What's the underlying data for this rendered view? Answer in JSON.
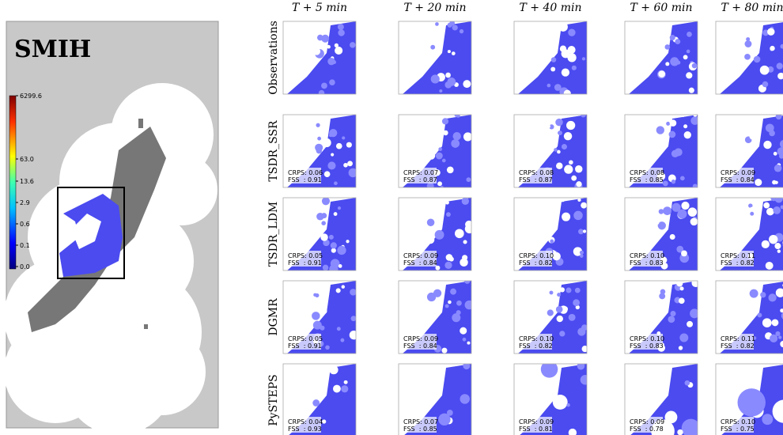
{
  "left_panel": {
    "title": "SMIH",
    "colorbar_labels": [
      "6299.6",
      "63.0",
      "13.6",
      "2.9",
      "0.6",
      "0.1",
      "0.0"
    ]
  },
  "grid": {
    "columns": [
      "T + 5 min",
      "T + 20 min",
      "T + 40 min",
      "T + 60 min",
      "T + 80 min"
    ],
    "rows": [
      {
        "label": "Observations"
      },
      {
        "label": "TSDR_SSR",
        "scores": [
          [
            "CRPS: 0.06",
            "FSS  : 0.91"
          ],
          [
            "CRPS: 0.07",
            "FSS  : 0.87"
          ],
          [
            "CRPS: 0.08",
            "FSS  : 0.87"
          ],
          [
            "CRPS: 0.08",
            "FSS  : 0.85"
          ],
          [
            "CRPS: 0.09",
            "FSS  : 0.84"
          ]
        ]
      },
      {
        "label": "TSDR_LDM",
        "scores": [
          [
            "CRPS: 0.05",
            "FSS  : 0.91"
          ],
          [
            "CRPS: 0.09",
            "FSS  : 0.84"
          ],
          [
            "CRPS: 0.10",
            "FSS  : 0.82"
          ],
          [
            "CRPS: 0.10",
            "FSS  : 0.83"
          ],
          [
            "CRPS: 0.11",
            "FSS  : 0.82"
          ]
        ]
      },
      {
        "label": "DGMR",
        "scores": [
          [
            "CRPS: 0.05",
            "FSS  : 0.91"
          ],
          [
            "CRPS: 0.09",
            "FSS  : 0.84"
          ],
          [
            "CRPS: 0.10",
            "FSS  : 0.82"
          ],
          [
            "CRPS: 0.10",
            "FSS  : 0.83"
          ],
          [
            "CRPS: 0.11",
            "FSS  : 0.82"
          ]
        ]
      },
      {
        "label": "PySTEPS",
        "scores": [
          [
            "CRPS: 0.04",
            "FSS  : 0.93"
          ],
          [
            "CRPS: 0.07",
            "FSS  : 0.85"
          ],
          [
            "CRPS: 0.09",
            "FSS  : 0.81"
          ],
          [
            "CRPS: 0.09",
            "FSS  : 0.78"
          ],
          [
            "CRPS: 0.10",
            "FSS  : 0.75"
          ]
        ]
      }
    ]
  }
}
